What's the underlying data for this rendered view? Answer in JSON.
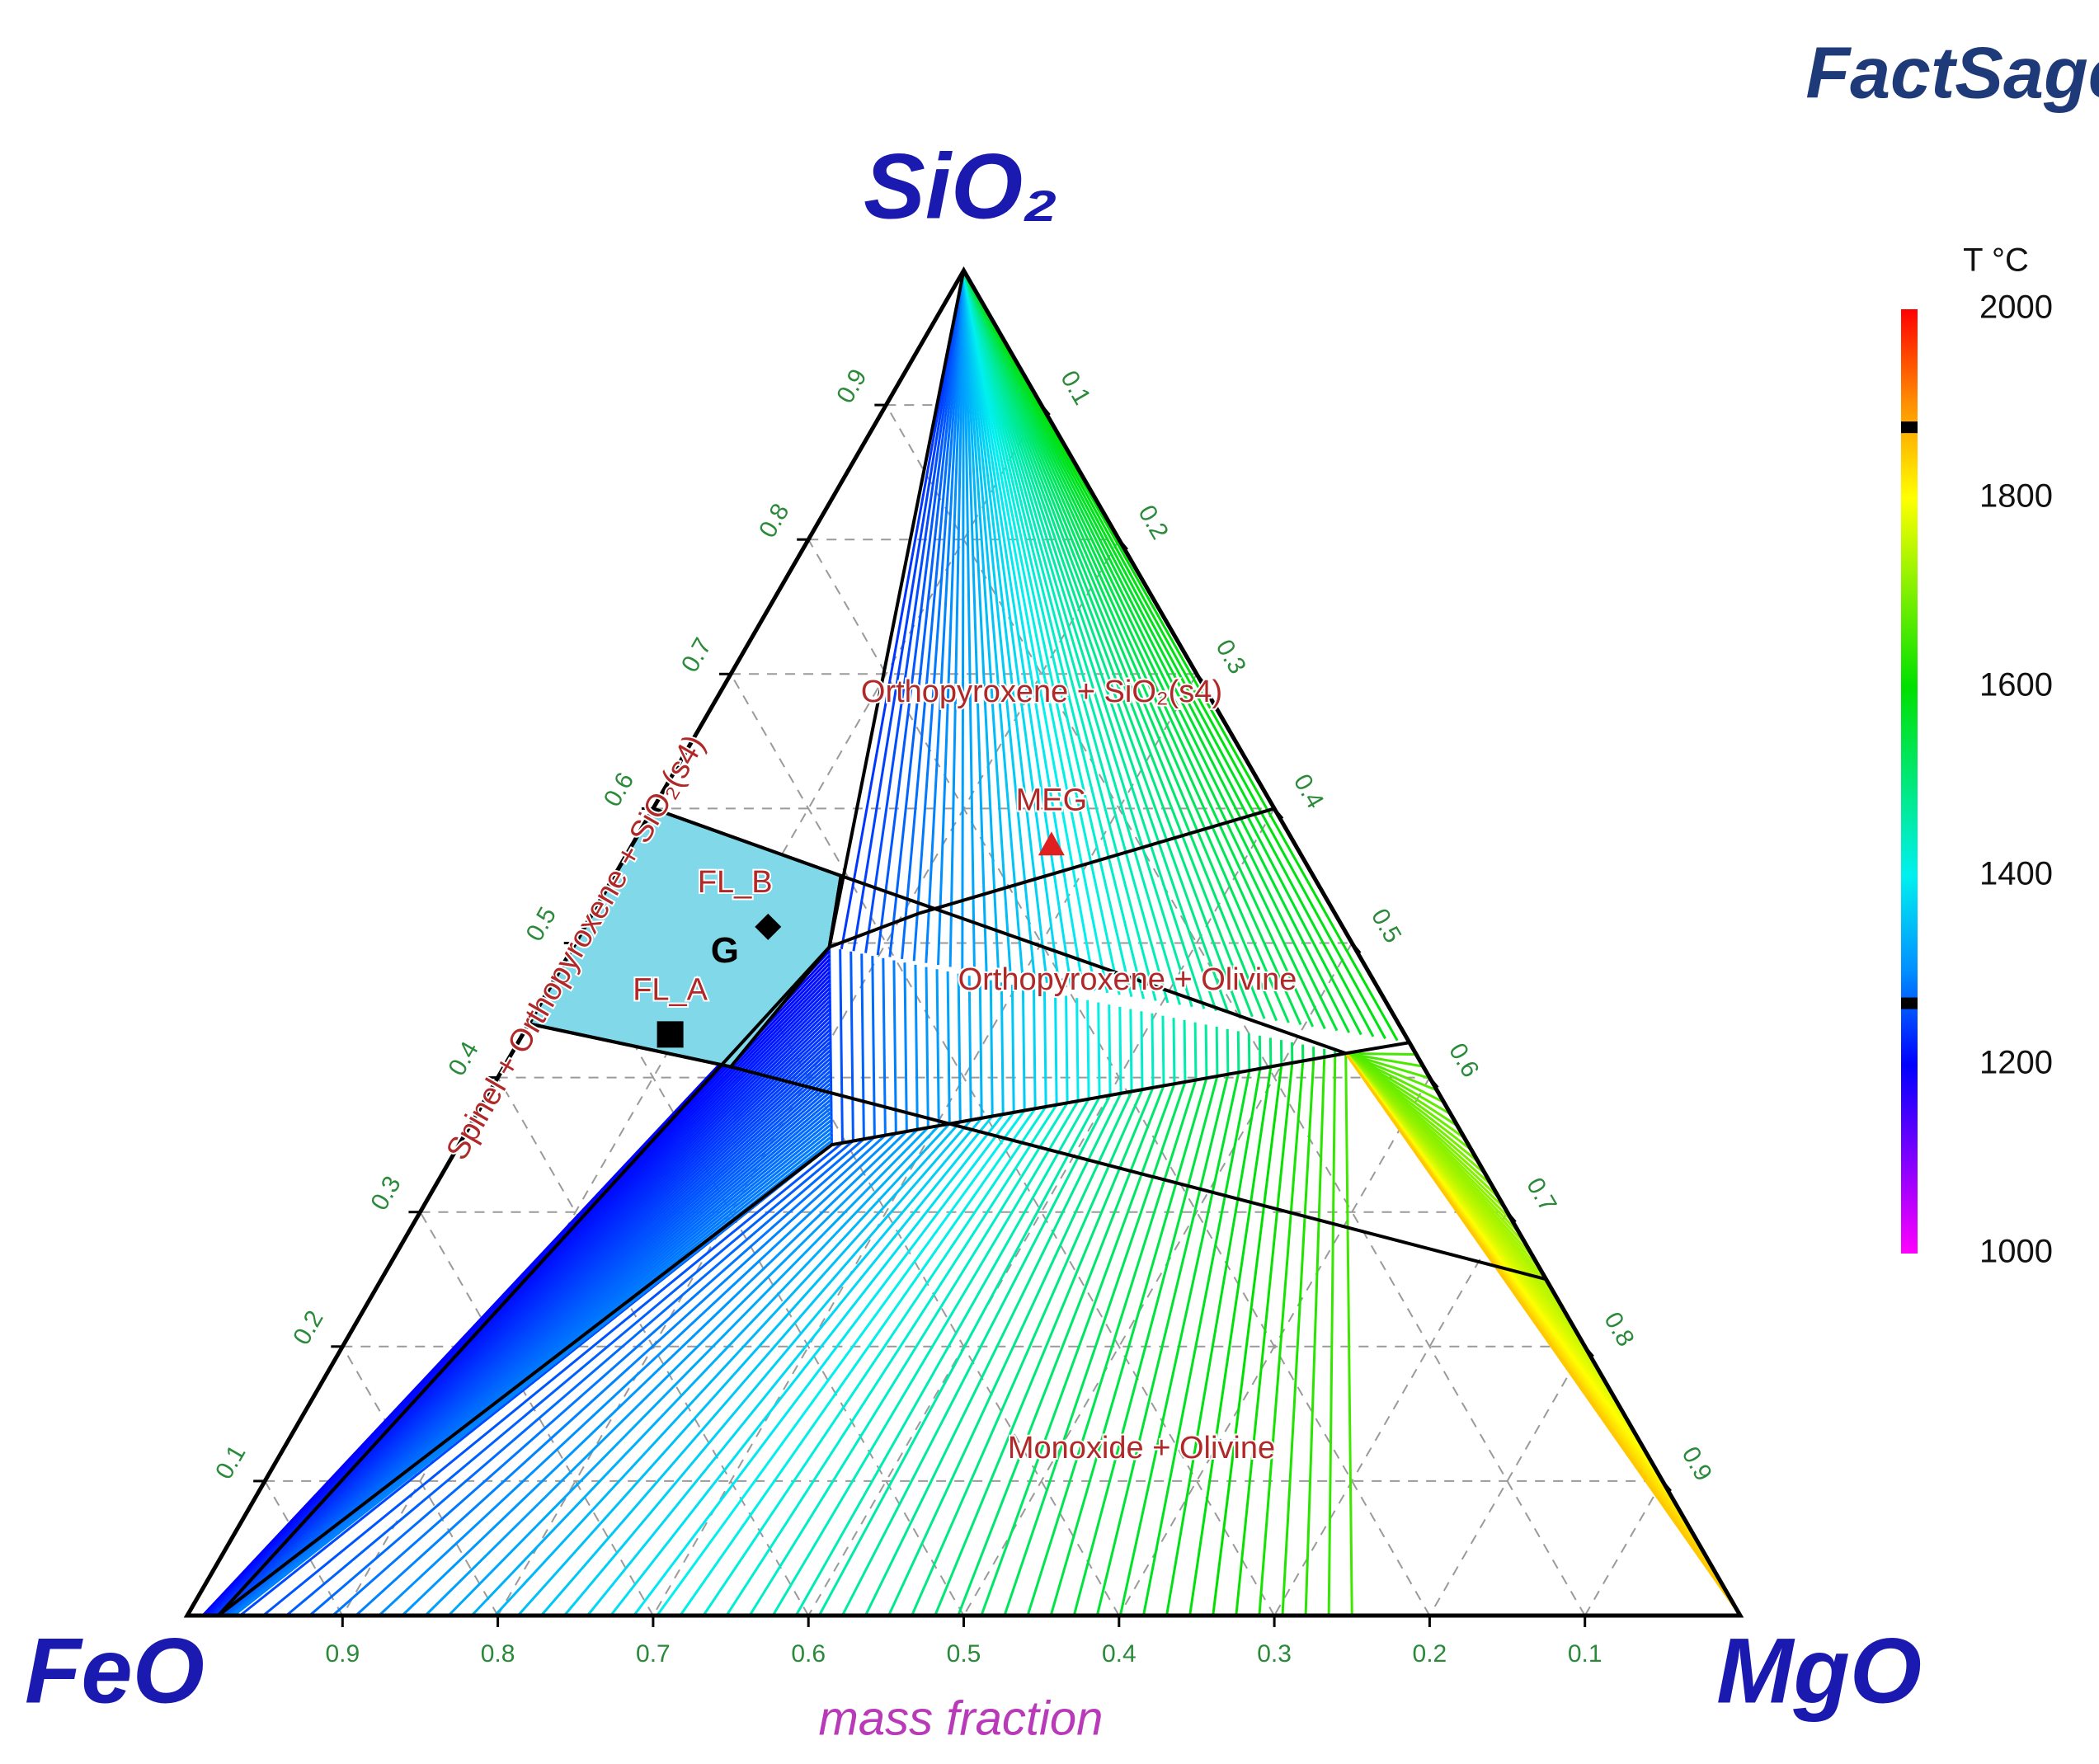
{
  "chart_data": {
    "type": "ternary",
    "logo": "FactSage",
    "components": [
      "FeO",
      "MgO",
      "SiO₂"
    ],
    "axis_label": "mass fraction",
    "ticks": {
      "bottom": [
        0.9,
        0.8,
        0.7,
        0.6,
        0.5,
        0.4,
        0.3,
        0.2,
        0.1
      ],
      "left": [
        0.1,
        0.2,
        0.3,
        0.4,
        0.5,
        0.6,
        0.7,
        0.8,
        0.9
      ],
      "right": [
        0.1,
        0.2,
        0.3,
        0.4,
        0.5,
        0.6,
        0.7,
        0.8,
        0.9
      ]
    },
    "grid": true,
    "region_labels": [
      "Orthopyroxene + SiO₂(s4)",
      "Orthopyroxene + Olivine",
      "Monoxide + Olivine",
      "Spinel + Orthopyroxene + SiO₂(s4)"
    ],
    "regions": [
      {
        "name": "G",
        "color": "#80d8e8",
        "vertices": [
          [
            0.4,
            0,
            0.6
          ],
          [
            0.304,
            0.146,
            0.55
          ],
          [
            0.338,
            0.165,
            0.497
          ],
          [
            0.446,
            0.146,
            0.408
          ],
          [
            0.56,
            0,
            0.44
          ]
        ]
      }
    ],
    "boundaries": [
      [
        [
          0,
          0,
          1
        ],
        [
          0.338,
          0.165,
          0.497
        ]
      ],
      [
        [
          0.4,
          0,
          0.6
        ],
        [
          0.304,
          0.146,
          0.55
        ],
        [
          0.338,
          0.165,
          0.497
        ]
      ],
      [
        [
          0.338,
          0.165,
          0.497
        ],
        [
          0.268,
          0.21,
          0.522
        ],
        [
          0,
          0.4,
          0.6
        ]
      ],
      [
        [
          0.304,
          0.146,
          0.55
        ],
        [
          0.045,
          0.537,
          0.418
        ],
        [
          0,
          0.574,
          0.426
        ]
      ],
      [
        [
          0.56,
          0,
          0.44
        ],
        [
          0.446,
          0.146,
          0.408
        ],
        [
          0,
          0.75,
          0.25
        ]
      ],
      [
        [
          0.338,
          0.165,
          0.497
        ],
        [
          0.98,
          0.02,
          0
        ]
      ],
      [
        [
          0.98,
          0.02,
          0
        ],
        [
          0.41,
          0.24,
          0.35
        ],
        [
          0.045,
          0.537,
          0.418
        ]
      ]
    ],
    "tie_line_fans": [
      {
        "from": [
          [
            0,
            0,
            1
          ],
          [
            0,
            0,
            1
          ]
        ],
        "to": [
          [
            0.338,
            0.165,
            0.497
          ],
          [
            0,
            0.574,
            0.426
          ]
        ],
        "t": [
          1230,
          1600
        ]
      },
      {
        "from": [
          [
            0.338,
            0.165,
            0.497
          ],
          [
            0.045,
            0.537,
            0.418
          ]
        ],
        "to": [
          [
            0.41,
            0.24,
            0.35
          ],
          [
            0.045,
            0.537,
            0.418
          ]
        ],
        "t": [
          1250,
          1550
        ]
      },
      {
        "from": [
          [
            0.966,
            0.034,
            0
          ],
          [
            0.25,
            0.75,
            0
          ]
        ],
        "to": [
          [
            0.41,
            0.24,
            0.35
          ],
          [
            0.045,
            0.537,
            0.418
          ]
        ],
        "t": [
          1250,
          1650
        ]
      },
      {
        "from": [
          [
            0.045,
            0.537,
            0.418
          ],
          [
            0.045,
            0.537,
            0.418
          ]
        ],
        "to": [
          [
            0,
            0.574,
            0.426
          ],
          [
            0,
            1,
            0
          ]
        ],
        "t": [
          1650,
          1850
        ]
      },
      {
        "from": [
          [
            0.99,
            0.01,
            0
          ],
          [
            0.97,
            0.03,
            0
          ]
        ],
        "to": [
          [
            0.338,
            0.165,
            0.497
          ],
          [
            0.41,
            0.24,
            0.35
          ]
        ],
        "t": [
          1200,
          1290
        ]
      }
    ],
    "points": [
      {
        "name": "MEG",
        "composition": [
          0.157,
          0.27,
          0.573
        ],
        "marker": "triangle",
        "color": "#e02020"
      },
      {
        "name": "FL_B",
        "composition": [
          0.37,
          0.118,
          0.512
        ],
        "marker": "diamond",
        "color": "#000000"
      },
      {
        "name": "FL_A",
        "composition": [
          0.473,
          0.095,
          0.432
        ],
        "marker": "square",
        "color": "#000000"
      }
    ],
    "colorbar": {
      "title": "T °C",
      "clim": [
        1000,
        2000
      ],
      "ticks": [
        1000,
        1200,
        1400,
        1600,
        1800,
        2000
      ],
      "markers": [
        1265,
        1875
      ],
      "stops": [
        [
          1000,
          "#ff00ff"
        ],
        [
          1100,
          "#8000ff"
        ],
        [
          1200,
          "#0000ff"
        ],
        [
          1300,
          "#0090ff"
        ],
        [
          1400,
          "#00f0f0"
        ],
        [
          1600,
          "#00e000"
        ],
        [
          1800,
          "#ffff00"
        ],
        [
          1900,
          "#ff9000"
        ],
        [
          2000,
          "#ff0000"
        ]
      ]
    }
  }
}
